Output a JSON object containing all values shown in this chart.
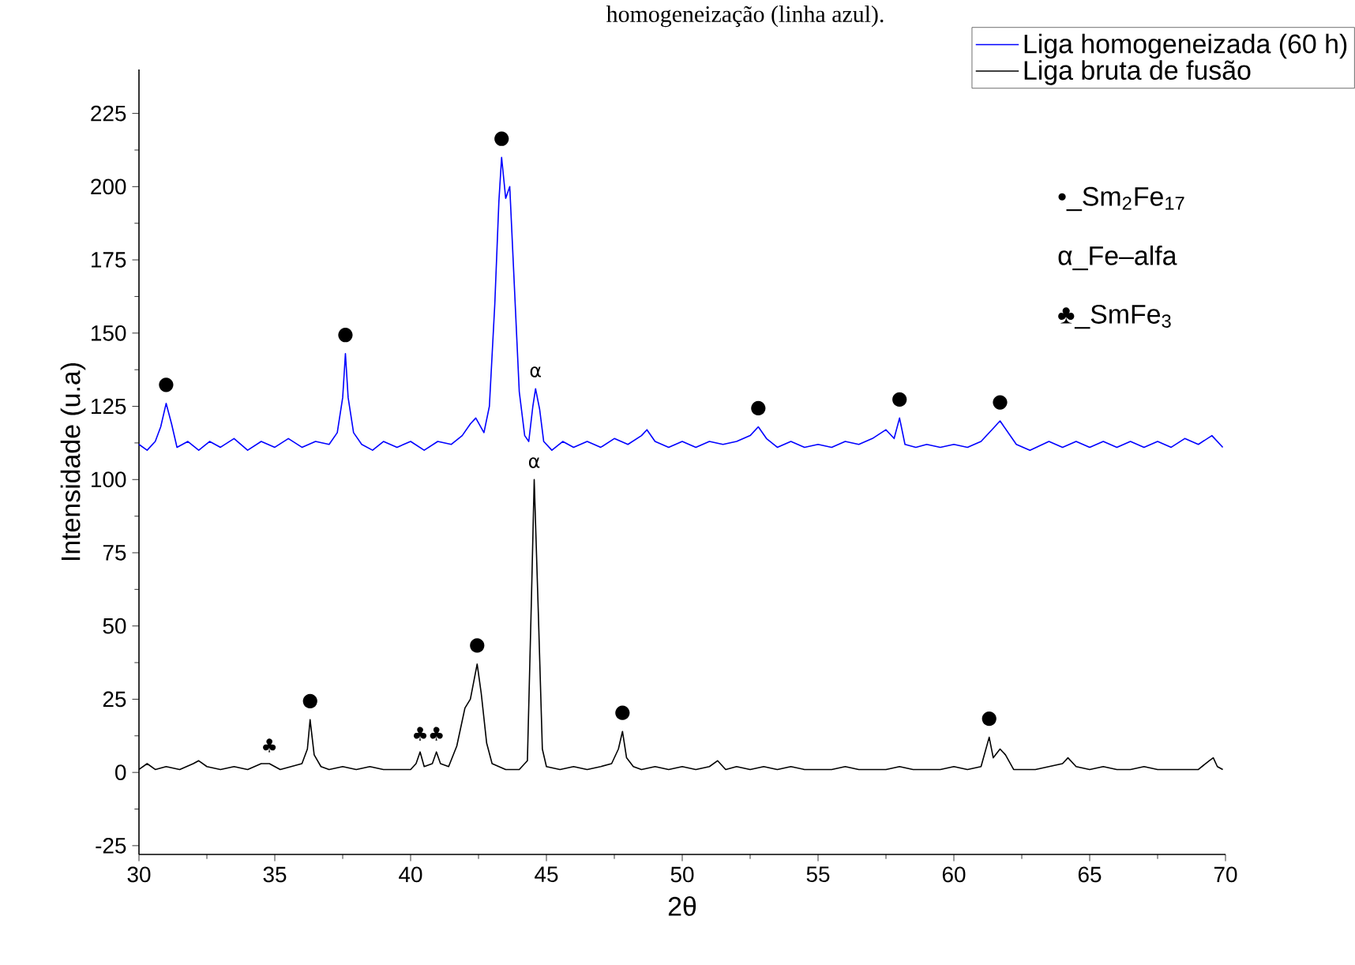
{
  "chart_data": {
    "type": "line",
    "title": "homogeneização (linha azul).",
    "xlabel": "2θ",
    "ylabel": "Intensidade (u.a)",
    "xlim": [
      30,
      70
    ],
    "ylim": [
      -28,
      240
    ],
    "xticks": [
      30,
      35,
      40,
      45,
      50,
      55,
      60,
      65,
      70
    ],
    "yticks": [
      -25,
      0,
      25,
      50,
      75,
      100,
      125,
      150,
      175,
      200,
      225
    ],
    "legend": "top right",
    "series": [
      {
        "name": "Liga homogeneizada (60 h)",
        "color": "#0000ff",
        "x": [
          30.0,
          30.3,
          30.6,
          30.8,
          31.0,
          31.2,
          31.4,
          31.8,
          32.2,
          32.6,
          33.0,
          33.5,
          34.0,
          34.5,
          35.0,
          35.5,
          36.0,
          36.5,
          37.0,
          37.3,
          37.5,
          37.6,
          37.7,
          37.9,
          38.2,
          38.6,
          39.0,
          39.5,
          40.0,
          40.5,
          41.0,
          41.5,
          41.9,
          42.2,
          42.4,
          42.7,
          42.9,
          43.1,
          43.25,
          43.35,
          43.5,
          43.65,
          43.8,
          44.0,
          44.2,
          44.35,
          44.5,
          44.6,
          44.75,
          44.9,
          45.2,
          45.6,
          46.0,
          46.5,
          47.0,
          47.5,
          48.0,
          48.5,
          48.7,
          49.0,
          49.5,
          50.0,
          50.5,
          51.0,
          51.5,
          52.0,
          52.5,
          52.8,
          53.1,
          53.5,
          54.0,
          54.5,
          55.0,
          55.5,
          56.0,
          56.5,
          57.0,
          57.5,
          57.8,
          58.0,
          58.2,
          58.6,
          59.0,
          59.5,
          60.0,
          60.5,
          61.0,
          61.4,
          61.7,
          62.0,
          62.3,
          62.8,
          63.5,
          64.0,
          64.5,
          65.0,
          65.5,
          66.0,
          66.5,
          67.0,
          67.5,
          68.0,
          68.5,
          69.0,
          69.5,
          69.9
        ],
        "values": [
          112,
          110,
          113,
          118,
          126,
          119,
          111,
          113,
          110,
          113,
          111,
          114,
          110,
          113,
          111,
          114,
          111,
          113,
          112,
          116,
          128,
          143,
          128,
          116,
          112,
          110,
          113,
          111,
          113,
          110,
          113,
          112,
          115,
          119,
          121,
          116,
          125,
          160,
          195,
          210,
          196,
          200,
          170,
          130,
          115,
          113,
          125,
          131,
          124,
          113,
          110,
          113,
          111,
          113,
          111,
          114,
          112,
          115,
          117,
          113,
          111,
          113,
          111,
          113,
          112,
          113,
          115,
          118,
          114,
          111,
          113,
          111,
          112,
          111,
          113,
          112,
          114,
          117,
          114,
          121,
          112,
          111,
          112,
          111,
          112,
          111,
          113,
          117,
          120,
          116,
          112,
          110,
          113,
          111,
          113,
          111,
          113,
          111,
          113,
          111,
          113,
          111,
          114,
          112,
          115,
          111
        ]
      },
      {
        "name": "Liga bruta de fusão",
        "color": "#000000",
        "x": [
          30.0,
          30.3,
          30.6,
          31.0,
          31.5,
          32.0,
          32.2,
          32.5,
          33.0,
          33.5,
          34.0,
          34.5,
          34.8,
          35.2,
          35.6,
          36.0,
          36.2,
          36.3,
          36.45,
          36.7,
          37.0,
          37.5,
          38.0,
          38.5,
          39.0,
          39.5,
          40.0,
          40.2,
          40.35,
          40.5,
          40.8,
          40.95,
          41.1,
          41.4,
          41.7,
          42.0,
          42.2,
          42.45,
          42.6,
          42.8,
          43.0,
          43.5,
          44.0,
          44.3,
          44.45,
          44.55,
          44.7,
          44.85,
          45.0,
          45.5,
          46.0,
          46.5,
          47.0,
          47.4,
          47.65,
          47.8,
          47.95,
          48.2,
          48.5,
          49.0,
          49.5,
          50.0,
          50.5,
          51.0,
          51.3,
          51.6,
          52.0,
          52.5,
          53.0,
          53.5,
          54.0,
          54.5,
          55.0,
          55.5,
          56.0,
          56.5,
          57.0,
          57.5,
          58.0,
          58.5,
          59.0,
          59.5,
          60.0,
          60.5,
          61.0,
          61.3,
          61.45,
          61.7,
          61.9,
          62.2,
          62.5,
          63.0,
          63.5,
          64.0,
          64.2,
          64.5,
          65.0,
          65.5,
          66.0,
          66.5,
          67.0,
          67.5,
          68.0,
          68.5,
          69.0,
          69.4,
          69.55,
          69.7,
          69.9
        ],
        "values": [
          1,
          3,
          1,
          2,
          1,
          3,
          4,
          2,
          1,
          2,
          1,
          3,
          3,
          1,
          2,
          3,
          8,
          18,
          6,
          2,
          1,
          2,
          1,
          2,
          1,
          1,
          1,
          3,
          7,
          2,
          3,
          7,
          3,
          2,
          9,
          22,
          25,
          37,
          27,
          10,
          3,
          1,
          1,
          4,
          60,
          100,
          55,
          8,
          2,
          1,
          2,
          1,
          2,
          3,
          8,
          14,
          5,
          2,
          1,
          2,
          1,
          2,
          1,
          2,
          4,
          1,
          2,
          1,
          2,
          1,
          2,
          1,
          1,
          1,
          2,
          1,
          1,
          1,
          2,
          1,
          1,
          1,
          2,
          1,
          2,
          12,
          5,
          8,
          6,
          1,
          1,
          1,
          2,
          3,
          5,
          2,
          1,
          2,
          1,
          1,
          2,
          1,
          1,
          1,
          1,
          4,
          5,
          2,
          1
        ]
      }
    ],
    "annotations": [
      {
        "text": "●",
        "x": 31.0,
        "y": 126
      },
      {
        "text": "●",
        "x": 37.6,
        "y": 143
      },
      {
        "text": "●",
        "x": 43.35,
        "y": 210
      },
      {
        "text": "α",
        "x": 44.6,
        "y": 131
      },
      {
        "text": "●",
        "x": 52.8,
        "y": 118
      },
      {
        "text": "●",
        "x": 58.0,
        "y": 121
      },
      {
        "text": "●",
        "x": 61.7,
        "y": 120
      },
      {
        "text": "♣",
        "x": 34.8,
        "y": 3
      },
      {
        "text": "●",
        "x": 36.3,
        "y": 18
      },
      {
        "text": "♣",
        "x": 40.35,
        "y": 7
      },
      {
        "text": "♣",
        "x": 40.95,
        "y": 7
      },
      {
        "text": "●",
        "x": 42.45,
        "y": 37
      },
      {
        "text": "α",
        "x": 44.55,
        "y": 100
      },
      {
        "text": "●",
        "x": 47.8,
        "y": 14
      },
      {
        "text": "●",
        "x": 61.3,
        "y": 12
      },
      "•_Sm$_{2}$Fe$_{17}$",
      "α_Fe–alfa",
      "♣_SmFe$_{3}$"
    ]
  }
}
